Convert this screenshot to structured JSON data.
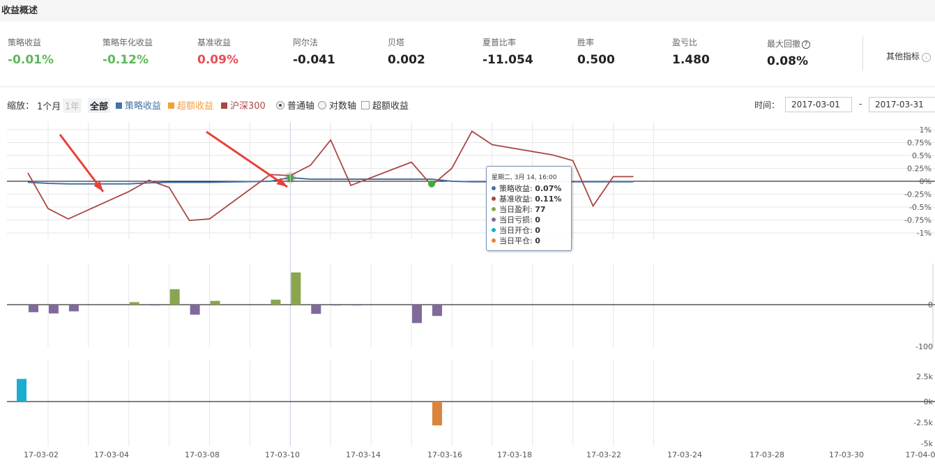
{
  "header": {
    "title": "收益概述"
  },
  "metrics": [
    {
      "label": "策略收益",
      "value": "-0.01%",
      "tone": "pos",
      "help": false
    },
    {
      "label": "策略年化收益",
      "value": "-0.12%",
      "tone": "pos",
      "help": false
    },
    {
      "label": "基准收益",
      "value": "0.09%",
      "tone": "neg",
      "help": false
    },
    {
      "label": "阿尔法",
      "value": "-0.041",
      "tone": "",
      "help": false
    },
    {
      "label": "贝塔",
      "value": "0.002",
      "tone": "",
      "help": false
    },
    {
      "label": "夏普比率",
      "value": "-11.054",
      "tone": "",
      "help": false
    },
    {
      "label": "胜率",
      "value": "0.500",
      "tone": "",
      "help": false
    },
    {
      "label": "盈亏比",
      "value": "1.480",
      "tone": "",
      "help": false
    },
    {
      "label": "最大回撤",
      "value": "0.08%",
      "tone": "",
      "help": true
    }
  ],
  "other_metrics": {
    "label": "其他指标",
    "icon": "chevron-right-icon"
  },
  "controls": {
    "zoom_label": "缩放：",
    "zoom_options": [
      "1个月",
      "1年",
      "全部"
    ],
    "zoom_active": "全部",
    "legend": [
      {
        "label": "策略收益",
        "color": "#4572a7"
      },
      {
        "label": "超额收益",
        "color": "#f79d3c"
      },
      {
        "label": "沪深300",
        "color": "#aa4643"
      }
    ],
    "axis_options": [
      {
        "label": "普通轴",
        "checked": true
      },
      {
        "label": "对数轴",
        "checked": false
      }
    ],
    "excess_checkbox": {
      "label": "超额收益",
      "checked": false
    },
    "time_label": "时间：",
    "date_from": "2017-03-01",
    "date_sep": "-",
    "date_to": "2017-03-31"
  },
  "colors": {
    "strategy": "#4572a7",
    "excess": "#f79d3c",
    "benchmark": "#aa4643",
    "profit": "#89a54e",
    "loss": "#80699b",
    "open": "#1aadce",
    "close": "#db843d",
    "arrow": "#e8403a",
    "positive": "#5cb85c",
    "negative": "#e84d55"
  },
  "chart_data": [
    {
      "type": "line",
      "x": [
        "2017-03-01",
        "2017-03-02",
        "2017-03-03",
        "2017-03-06",
        "2017-03-07",
        "2017-03-08",
        "2017-03-09",
        "2017-03-10",
        "2017-03-13",
        "2017-03-14",
        "2017-03-15",
        "2017-03-16",
        "2017-03-17",
        "2017-03-20",
        "2017-03-21",
        "2017-03-22",
        "2017-03-23",
        "2017-03-24",
        "2017-03-27",
        "2017-03-28",
        "2017-03-29",
        "2017-03-30",
        "2017-03-31"
      ],
      "x_ticks": [
        "17-03-02",
        "17-03-04",
        "17-03-08",
        "17-03-10",
        "17-03-14",
        "17-03-16",
        "17-03-18",
        "17-03-22",
        "17-03-24",
        "17-03-28",
        "17-03-30",
        "17-04-0"
      ],
      "series": [
        {
          "name": "策略收益",
          "values": [
            -0.02,
            -0.04,
            -0.05,
            -0.05,
            -0.03,
            -0.02,
            -0.02,
            -0.02,
            0.0,
            0.07,
            0.04,
            0.04,
            0.04,
            0.04,
            0.04,
            0.0,
            -0.01,
            -0.01,
            -0.01,
            -0.01,
            -0.01,
            -0.01,
            -0.01
          ]
        },
        {
          "name": "沪深300",
          "values": [
            0.16,
            -0.53,
            -0.73,
            -0.2,
            0.02,
            -0.12,
            -0.76,
            -0.73,
            0.13,
            0.11,
            0.31,
            0.8,
            -0.08,
            0.37,
            -0.08,
            0.25,
            0.97,
            0.71,
            0.51,
            0.4,
            -0.48,
            0.09,
            0.09
          ]
        }
      ],
      "y_ticks": [
        "1%",
        "0.75%",
        "0.5%",
        "0.25%",
        "0%",
        "-0.25%",
        "-0.5%",
        "-0.75%",
        "-1%"
      ],
      "ylim": [
        -1,
        1
      ],
      "markers": [
        {
          "x": "2017-03-14",
          "series": "策略收益"
        },
        {
          "x": "2017-03-21",
          "series": "策略收益"
        }
      ]
    },
    {
      "type": "bar",
      "name": "当日盈亏",
      "x": [
        "2017-03-01",
        "2017-03-02",
        "2017-03-03",
        "2017-03-06",
        "2017-03-07",
        "2017-03-08",
        "2017-03-09",
        "2017-03-10",
        "2017-03-13",
        "2017-03-14",
        "2017-03-15",
        "2017-03-16",
        "2017-03-17",
        "2017-03-20",
        "2017-03-21",
        "2017-03-22",
        "2017-03-23",
        "2017-03-24",
        "2017-03-27",
        "2017-03-28",
        "2017-03-29",
        "2017-03-30",
        "2017-03-31"
      ],
      "values": [
        -18,
        -21,
        -16,
        6,
        -2,
        37,
        -24,
        9,
        12,
        77,
        -22,
        -2,
        -2,
        -44,
        -27,
        0,
        0,
        0,
        0,
        0,
        0,
        0,
        0
      ],
      "y_ticks": [
        "0",
        "-100"
      ]
    },
    {
      "type": "bar",
      "name": "当日开合/平合",
      "x": [
        "2017-03-01",
        "2017-03-02",
        "2017-03-03",
        "2017-03-06",
        "2017-03-07",
        "2017-03-08",
        "2017-03-09",
        "2017-03-10",
        "2017-03-13",
        "2017-03-14",
        "2017-03-15",
        "2017-03-16",
        "2017-03-17",
        "2017-03-20",
        "2017-03-21",
        "2017-03-22",
        "2017-03-23",
        "2017-03-24",
        "2017-03-27",
        "2017-03-28",
        "2017-03-29",
        "2017-03-30",
        "2017-03-31"
      ],
      "open": [
        2800,
        0,
        0,
        0,
        0,
        0,
        0,
        0,
        0,
        0,
        0,
        0,
        0,
        0,
        0,
        0,
        0,
        0,
        0,
        0,
        0,
        0,
        0
      ],
      "close": [
        0,
        0,
        0,
        0,
        0,
        0,
        0,
        0,
        0,
        0,
        0,
        0,
        0,
        0,
        -2950,
        0,
        0,
        0,
        0,
        0,
        0,
        0,
        0
      ],
      "y_ticks": [
        "2.5k",
        "0k",
        "-2.5k",
        "-5k"
      ]
    }
  ],
  "tooltip": {
    "header": "星期二, 3月 14, 16:00",
    "rows": [
      {
        "label": "策略收益: ",
        "value": "0.07%",
        "color": "#4572a7"
      },
      {
        "label": "基准收益: ",
        "value": "0.11%",
        "color": "#aa4643"
      },
      {
        "label": "当日盈利: ",
        "value": "77",
        "color": "#89a54e"
      },
      {
        "label": "当日亏损: ",
        "value": "0",
        "color": "#80699b"
      },
      {
        "label": "当日开仓: ",
        "value": "0",
        "color": "#1aadce"
      },
      {
        "label": "当日平仓: ",
        "value": "0",
        "color": "#db843d"
      }
    ]
  }
}
